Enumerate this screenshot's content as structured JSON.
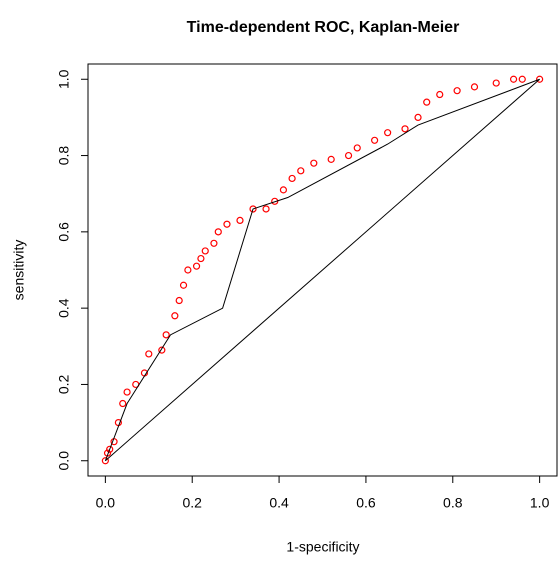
{
  "chart_data": {
    "type": "scatter",
    "title": "Time-dependent ROC, Kaplan-Meier",
    "xlabel": "1-specificity",
    "ylabel": "sensitivity",
    "xlim": [
      -0.04,
      1.04
    ],
    "ylim": [
      -0.04,
      1.04
    ],
    "xticks": [
      {
        "value": 0,
        "label": "0.0"
      },
      0.2,
      0.4,
      0.6,
      0.8,
      {
        "value": 1,
        "label": "1.0"
      }
    ],
    "yticks": [
      {
        "value": 0,
        "label": "0.0"
      },
      0.2,
      0.4,
      0.6,
      0.8,
      {
        "value": 1,
        "label": "1.0"
      }
    ],
    "series": [
      {
        "color": "#ff0000",
        "marker": "circle",
        "x": [
          0,
          0.005,
          0.01,
          0.02,
          0.03,
          0.04,
          0.05,
          0.07,
          0.09,
          0.1,
          0.13,
          0.14,
          0.16,
          0.17,
          0.18,
          0.19,
          0.21,
          0.22,
          0.23,
          0.25,
          0.26,
          0.28,
          0.31,
          0.34,
          0.37,
          0.39,
          0.41,
          0.43,
          0.45,
          0.48,
          0.52,
          0.56,
          0.58,
          0.62,
          0.65,
          0.69,
          0.72,
          0.74,
          0.77,
          0.81,
          0.85,
          0.9,
          0.94,
          0.96,
          1
        ],
        "values": [
          0,
          0.02,
          0.03,
          0.05,
          0.1,
          0.15,
          0.18,
          0.2,
          0.23,
          0.28,
          0.29,
          0.33,
          0.38,
          0.42,
          0.46,
          0.5,
          0.51,
          0.53,
          0.55,
          0.57,
          0.6,
          0.62,
          0.63,
          0.66,
          0.66,
          0.68,
          0.71,
          0.74,
          0.76,
          0.78,
          0.79,
          0.8,
          0.82,
          0.84,
          0.86,
          0.87,
          0.9,
          0.94,
          0.96,
          0.97,
          0.98,
          0.99,
          1,
          1,
          1
        ]
      },
      {
        "color": "#000000",
        "marker": "line",
        "x": [
          0,
          0.05,
          0.15,
          0.27,
          0.34,
          0.42,
          0.65,
          0.72,
          1
        ],
        "values": [
          0,
          0.15,
          0.33,
          0.4,
          0.66,
          0.69,
          0.83,
          0.88,
          1
        ]
      },
      {
        "color": "#000000",
        "marker": "line",
        "x": [
          0,
          1
        ],
        "values": [
          0,
          1
        ]
      }
    ]
  }
}
